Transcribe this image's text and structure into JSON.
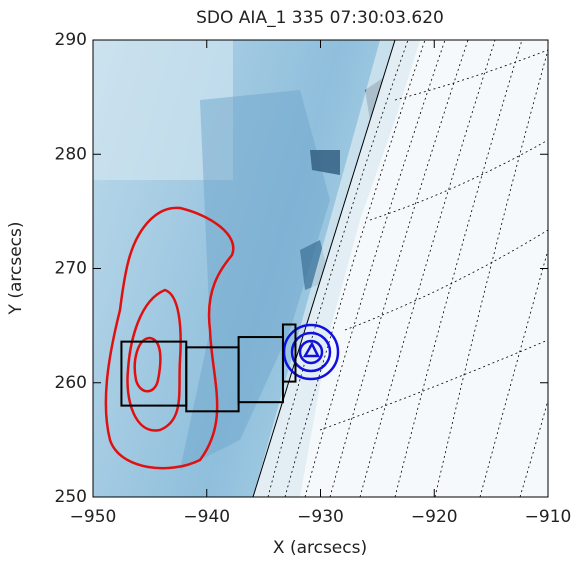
{
  "chart_data": {
    "type": "image",
    "title": "SDO AIA_1 335 07:30:03.620",
    "x_label": "X (arcsecs)",
    "y_label": "Y (arcsecs)",
    "xlim": [
      -950,
      -910
    ],
    "ylim": [
      250,
      290
    ],
    "xticks": [
      {
        "value": -950,
        "label": "−950"
      },
      {
        "value": -940,
        "label": "−940"
      },
      {
        "value": -930,
        "label": "−930"
      },
      {
        "value": -920,
        "label": "−920"
      },
      {
        "value": -910,
        "label": "−910"
      }
    ],
    "yticks": [
      250,
      260,
      270,
      280,
      290
    ],
    "boxes": [
      {
        "x": [
          -947.5,
          -941.8
        ],
        "y": [
          258.0,
          263.6
        ]
      },
      {
        "x": [
          -941.8,
          -937.2
        ],
        "y": [
          257.5,
          263.1
        ]
      },
      {
        "x": [
          -937.2,
          -933.3
        ],
        "y": [
          258.3,
          264.0
        ]
      },
      {
        "x": [
          -933.3,
          -932.2
        ],
        "y": [
          260.1,
          265.1
        ]
      }
    ],
    "box_color": "#000000"
  }
}
